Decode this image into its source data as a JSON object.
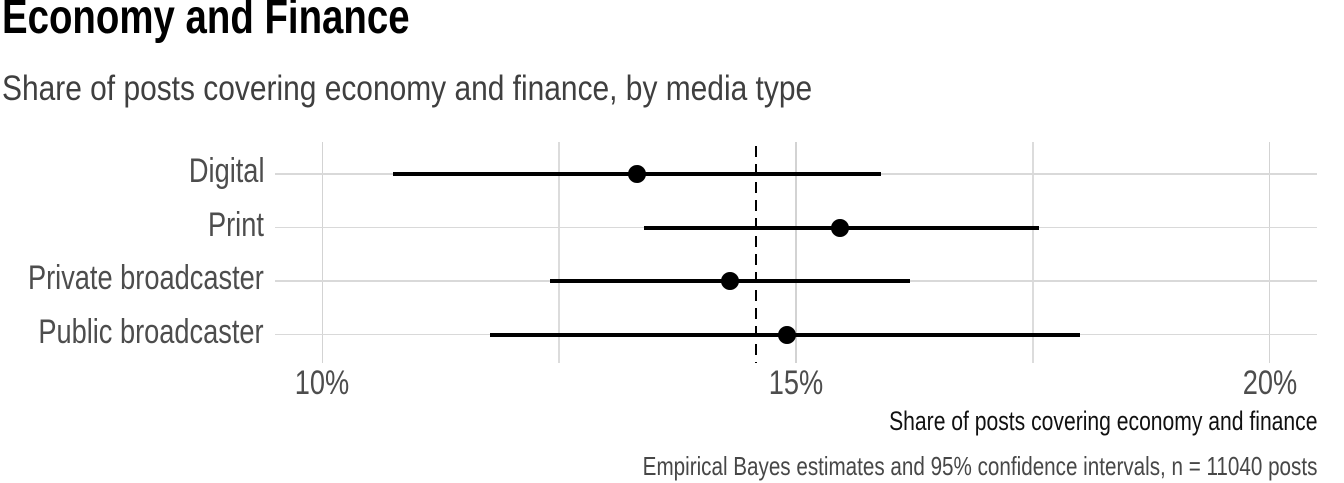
{
  "title": "Economy and Finance",
  "subtitle": "Share of posts covering economy and finance, by media type",
  "axis_title": "Share of posts covering economy and finance",
  "caption": "Empirical Bayes estimates and 95% confidence intervals, n = 11040 posts",
  "colors": {
    "point": "#000000",
    "ci_line": "#000000",
    "reference_line": "#000000",
    "grid_major": "#d3d3d3",
    "grid_minor": "#dcdcdc",
    "title": "#000000",
    "subtitle": "#3f3f3f",
    "axis_text": "#4d4d4d",
    "axis_title_color": "#111111",
    "caption_color": "#474747"
  },
  "chart_data": {
    "type": "scatter",
    "subtype": "pointrange: dot with 95% confidence interval, dashed overall-mean reference line",
    "categories": [
      "Digital",
      "Print",
      "Private broadcaster",
      "Public broadcaster"
    ],
    "series": [
      {
        "name": "Share of posts covering economy and finance (%)",
        "estimates": [
          13.32,
          15.46,
          14.3,
          14.9
        ],
        "ci_low": [
          10.75,
          13.4,
          12.4,
          11.77
        ],
        "ci_high": [
          15.9,
          17.57,
          16.2,
          18.0
        ]
      }
    ],
    "reference_line": 14.58,
    "x_ticks": [
      {
        "value": 10,
        "label": "10%"
      },
      {
        "value": 15,
        "label": "15%"
      },
      {
        "value": 20,
        "label": "20%"
      }
    ],
    "x_minor_ticks": [
      12.5,
      17.5
    ],
    "xlim": [
      9.5,
      20.5
    ],
    "xlabel": "Share of posts covering economy and finance",
    "ylabel": "",
    "grid": "vertical major+minor gridlines, one horizontal gridline per category",
    "legend": "none"
  }
}
